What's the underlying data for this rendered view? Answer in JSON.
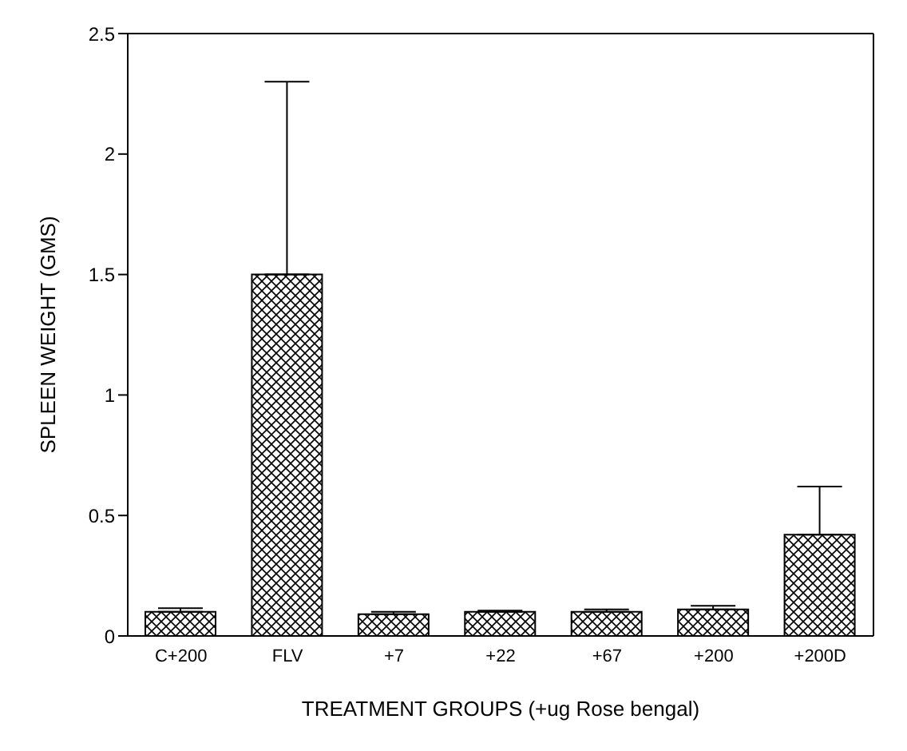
{
  "chart_data": {
    "type": "bar",
    "xlabel": "TREATMENT GROUPS (+ug Rose bengal)",
    "ylabel": "SPLEEN WEIGHT (GMS)",
    "categories": [
      "C+200",
      "FLV",
      "+7",
      "+22",
      "+67",
      "+200",
      "+200D"
    ],
    "values": [
      0.1,
      1.5,
      0.09,
      0.1,
      0.1,
      0.11,
      0.42
    ],
    "errors": [
      [
        0.1,
        0.115
      ],
      [
        1.5,
        2.3
      ],
      [
        0.09,
        0.1
      ],
      [
        0.1,
        0.105
      ],
      [
        0.1,
        0.11
      ],
      [
        0.11,
        0.125
      ],
      [
        0.42,
        0.62
      ]
    ],
    "color": "#000000",
    "ylim": [
      0,
      2.5
    ],
    "yticks": [
      0,
      {
        "value": 0.5,
        "label": "0.5"
      },
      1,
      {
        "value": 1.5,
        "label": "1.5"
      },
      2,
      {
        "value": 2.5,
        "label": "2.5"
      }
    ],
    "grid": false
  }
}
